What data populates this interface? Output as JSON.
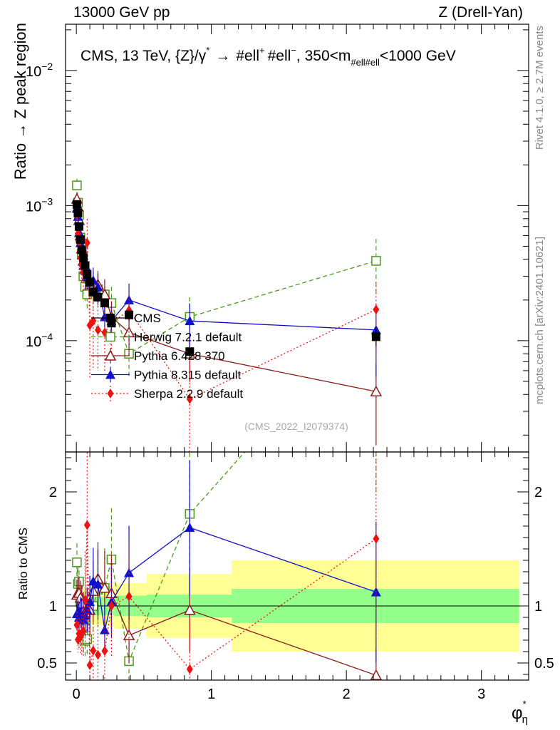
{
  "header": {
    "left": "13000 GeV pp",
    "right": "Z (Drell-Yan)"
  },
  "side_labels": {
    "rivet": "Rivet 4.1.0, ≥ 2.7M events",
    "mcplots": "mcplots.cern.ch [arXiv:2401.10621]"
  },
  "chart_data": {
    "type": "scatter",
    "title": "CMS, 13 TeV, {Z}/γ* → #ell⁺ #ell⁻, 350<m#ell#ell<1000 GeV",
    "title_parts": {
      "prefix": "CMS, 13 TeV, {Z}/γ",
      "star": "*",
      "arrow": "→",
      "ell1": "#ell",
      "plus": "+",
      "ell2": "#ell",
      "minus": "−",
      "mid": ", 350<m",
      "sub": "#ell#ell",
      "suffix": "<1000 GeV"
    },
    "watermark": "(CMS_2022_I2079374)",
    "ylabel_main": "Ratio → Z peak region",
    "ylabel_ratio": "Ratio to CMS",
    "xlabel": "φ",
    "xlabel_sup": "*",
    "xlabel_sub": "η",
    "xlim": [
      -0.08,
      3.35
    ],
    "ylim_main": [
      1.5e-05,
      0.022
    ],
    "ylim_ratio": [
      0.35,
      2.35
    ],
    "x_ticks": [
      "0",
      "1",
      "2",
      "3"
    ],
    "y_ticks_main": [
      {
        "value": 0.01,
        "base": "10",
        "exp": "−2"
      },
      {
        "value": 0.001,
        "base": "10",
        "exp": "−3"
      },
      {
        "value": 0.0001,
        "base": "10",
        "exp": "−4"
      }
    ],
    "y_ticks_ratio": [
      "0.5",
      "1",
      "2"
    ],
    "x": [
      0.004,
      0.012,
      0.02,
      0.03,
      0.04,
      0.052,
      0.065,
      0.08,
      0.1,
      0.125,
      0.16,
      0.21,
      0.26,
      0.39,
      0.84,
      2.22
    ],
    "cms": {
      "name": "CMS",
      "values": [
        0.00102,
        0.00088,
        0.0007,
        0.00056,
        0.00047,
        0.00041,
        0.00036,
        0.00031,
        0.00027,
        0.00023,
        0.00021,
        0.00019,
        0.000135,
        0.000155,
        8.3e-05,
        0.000107
      ],
      "bin_edges": [
        0.0,
        0.008,
        0.016,
        0.024,
        0.035,
        0.045,
        0.058,
        0.072,
        0.09,
        0.11,
        0.14,
        0.18,
        0.24,
        0.28,
        0.52,
        1.15,
        3.28
      ],
      "band_inner": [
        0.06,
        0.06,
        0.06,
        0.07,
        0.07,
        0.07,
        0.08,
        0.08,
        0.08,
        0.08,
        0.08,
        0.08,
        0.08,
        0.09,
        0.1,
        0.15
      ],
      "band_outer": [
        0.13,
        0.13,
        0.14,
        0.14,
        0.15,
        0.15,
        0.15,
        0.16,
        0.16,
        0.17,
        0.17,
        0.17,
        0.18,
        0.2,
        0.28,
        0.4
      ]
    },
    "series": [
      {
        "name": "Herwig 7.2.1 default",
        "color": "#4a9a1a",
        "marker": "open-square",
        "dash": "6,4",
        "values": [
          0.00141,
          0.00105,
          0.00085,
          0.00058,
          0.00044,
          0.0003,
          0.00025,
          0.00022,
          0.00027,
          0.00023,
          0.00024,
          0.00022,
          0.00019,
          8e-05,
          0.00015,
          0.00039
        ],
        "err": [
          0.12,
          0.12,
          0.13,
          0.15,
          0.18,
          0.2,
          0.22,
          0.22,
          0.24,
          0.25,
          0.28,
          0.3,
          0.32,
          0.35,
          0.4,
          0.45
        ]
      },
      {
        "name": "Pythia 6.428 370",
        "color": "#8b1a1a",
        "marker": "open-triangle",
        "dash": "",
        "values": [
          0.00112,
          0.00098,
          0.00078,
          0.0006,
          0.00048,
          0.00039,
          0.00034,
          0.0003,
          0.00026,
          0.00026,
          0.00026,
          0.00022,
          0.00015,
          0.000115,
          8e-05,
          4.2e-05
        ],
        "err": [
          0.12,
          0.12,
          0.13,
          0.14,
          0.16,
          0.18,
          0.2,
          0.2,
          0.22,
          0.24,
          0.26,
          0.28,
          0.3,
          0.33,
          0.38,
          0.6
        ]
      },
      {
        "name": "Pythia 8.315 default",
        "color": "#1010cc",
        "marker": "filled-triangle",
        "dash": "",
        "values": [
          0.00095,
          0.00083,
          0.00063,
          0.00053,
          0.00043,
          0.00036,
          0.00033,
          0.0003,
          0.00028,
          0.00028,
          0.00025,
          0.00015,
          0.00014,
          0.0002,
          0.00014,
          0.00012
        ],
        "err": [
          0.12,
          0.12,
          0.13,
          0.14,
          0.16,
          0.18,
          0.2,
          0.2,
          0.22,
          0.24,
          0.26,
          0.28,
          0.3,
          0.32,
          0.35,
          0.55
        ]
      },
      {
        "name": "Sherpa 2.2.9 default",
        "color": "#ee1111",
        "marker": "filled-diamond",
        "dash": "2,3",
        "values": [
          0.00085,
          0.00062,
          0.00053,
          0.00041,
          0.00036,
          0.00032,
          0.00038,
          0.00053,
          0.00013,
          0.00014,
          0.00012,
          0.000115,
          0.000135,
          0.000168,
          3.7e-05,
          0.00017
        ],
        "err": [
          0.14,
          0.16,
          0.18,
          0.2,
          0.25,
          0.3,
          0.4,
          0.5,
          0.6,
          0.55,
          0.5,
          0.5,
          0.45,
          0.45,
          0.9,
          0.6
        ]
      }
    ]
  }
}
